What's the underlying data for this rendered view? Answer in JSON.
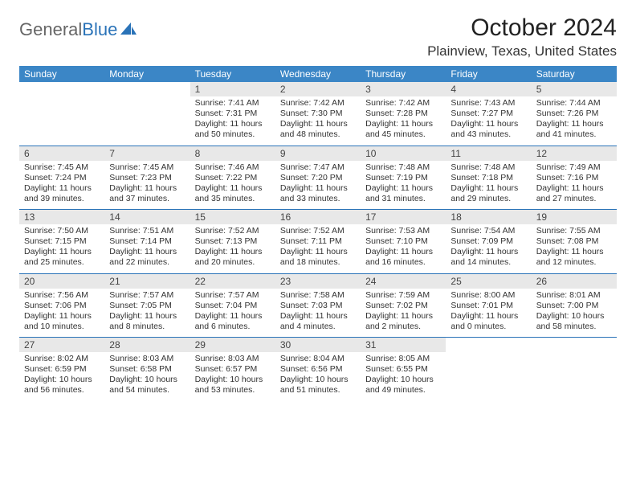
{
  "brand": {
    "general": "General",
    "blue": "Blue"
  },
  "title": "October 2024",
  "location": "Plainview, Texas, United States",
  "colors": {
    "header_bg": "#3b86c6",
    "header_text": "#ffffff",
    "daynum_bg": "#e8e8e8",
    "week_sep": "#2a73b8",
    "text": "#333333"
  },
  "days_of_week": [
    "Sunday",
    "Monday",
    "Tuesday",
    "Wednesday",
    "Thursday",
    "Friday",
    "Saturday"
  ],
  "weeks": [
    [
      null,
      null,
      {
        "n": "1",
        "sr": "7:41 AM",
        "ss": "7:31 PM",
        "dl": "11 hours and 50 minutes."
      },
      {
        "n": "2",
        "sr": "7:42 AM",
        "ss": "7:30 PM",
        "dl": "11 hours and 48 minutes."
      },
      {
        "n": "3",
        "sr": "7:42 AM",
        "ss": "7:28 PM",
        "dl": "11 hours and 45 minutes."
      },
      {
        "n": "4",
        "sr": "7:43 AM",
        "ss": "7:27 PM",
        "dl": "11 hours and 43 minutes."
      },
      {
        "n": "5",
        "sr": "7:44 AM",
        "ss": "7:26 PM",
        "dl": "11 hours and 41 minutes."
      }
    ],
    [
      {
        "n": "6",
        "sr": "7:45 AM",
        "ss": "7:24 PM",
        "dl": "11 hours and 39 minutes."
      },
      {
        "n": "7",
        "sr": "7:45 AM",
        "ss": "7:23 PM",
        "dl": "11 hours and 37 minutes."
      },
      {
        "n": "8",
        "sr": "7:46 AM",
        "ss": "7:22 PM",
        "dl": "11 hours and 35 minutes."
      },
      {
        "n": "9",
        "sr": "7:47 AM",
        "ss": "7:20 PM",
        "dl": "11 hours and 33 minutes."
      },
      {
        "n": "10",
        "sr": "7:48 AM",
        "ss": "7:19 PM",
        "dl": "11 hours and 31 minutes."
      },
      {
        "n": "11",
        "sr": "7:48 AM",
        "ss": "7:18 PM",
        "dl": "11 hours and 29 minutes."
      },
      {
        "n": "12",
        "sr": "7:49 AM",
        "ss": "7:16 PM",
        "dl": "11 hours and 27 minutes."
      }
    ],
    [
      {
        "n": "13",
        "sr": "7:50 AM",
        "ss": "7:15 PM",
        "dl": "11 hours and 25 minutes."
      },
      {
        "n": "14",
        "sr": "7:51 AM",
        "ss": "7:14 PM",
        "dl": "11 hours and 22 minutes."
      },
      {
        "n": "15",
        "sr": "7:52 AM",
        "ss": "7:13 PM",
        "dl": "11 hours and 20 minutes."
      },
      {
        "n": "16",
        "sr": "7:52 AM",
        "ss": "7:11 PM",
        "dl": "11 hours and 18 minutes."
      },
      {
        "n": "17",
        "sr": "7:53 AM",
        "ss": "7:10 PM",
        "dl": "11 hours and 16 minutes."
      },
      {
        "n": "18",
        "sr": "7:54 AM",
        "ss": "7:09 PM",
        "dl": "11 hours and 14 minutes."
      },
      {
        "n": "19",
        "sr": "7:55 AM",
        "ss": "7:08 PM",
        "dl": "11 hours and 12 minutes."
      }
    ],
    [
      {
        "n": "20",
        "sr": "7:56 AM",
        "ss": "7:06 PM",
        "dl": "11 hours and 10 minutes."
      },
      {
        "n": "21",
        "sr": "7:57 AM",
        "ss": "7:05 PM",
        "dl": "11 hours and 8 minutes."
      },
      {
        "n": "22",
        "sr": "7:57 AM",
        "ss": "7:04 PM",
        "dl": "11 hours and 6 minutes."
      },
      {
        "n": "23",
        "sr": "7:58 AM",
        "ss": "7:03 PM",
        "dl": "11 hours and 4 minutes."
      },
      {
        "n": "24",
        "sr": "7:59 AM",
        "ss": "7:02 PM",
        "dl": "11 hours and 2 minutes."
      },
      {
        "n": "25",
        "sr": "8:00 AM",
        "ss": "7:01 PM",
        "dl": "11 hours and 0 minutes."
      },
      {
        "n": "26",
        "sr": "8:01 AM",
        "ss": "7:00 PM",
        "dl": "10 hours and 58 minutes."
      }
    ],
    [
      {
        "n": "27",
        "sr": "8:02 AM",
        "ss": "6:59 PM",
        "dl": "10 hours and 56 minutes."
      },
      {
        "n": "28",
        "sr": "8:03 AM",
        "ss": "6:58 PM",
        "dl": "10 hours and 54 minutes."
      },
      {
        "n": "29",
        "sr": "8:03 AM",
        "ss": "6:57 PM",
        "dl": "10 hours and 53 minutes."
      },
      {
        "n": "30",
        "sr": "8:04 AM",
        "ss": "6:56 PM",
        "dl": "10 hours and 51 minutes."
      },
      {
        "n": "31",
        "sr": "8:05 AM",
        "ss": "6:55 PM",
        "dl": "10 hours and 49 minutes."
      },
      null,
      null
    ]
  ]
}
